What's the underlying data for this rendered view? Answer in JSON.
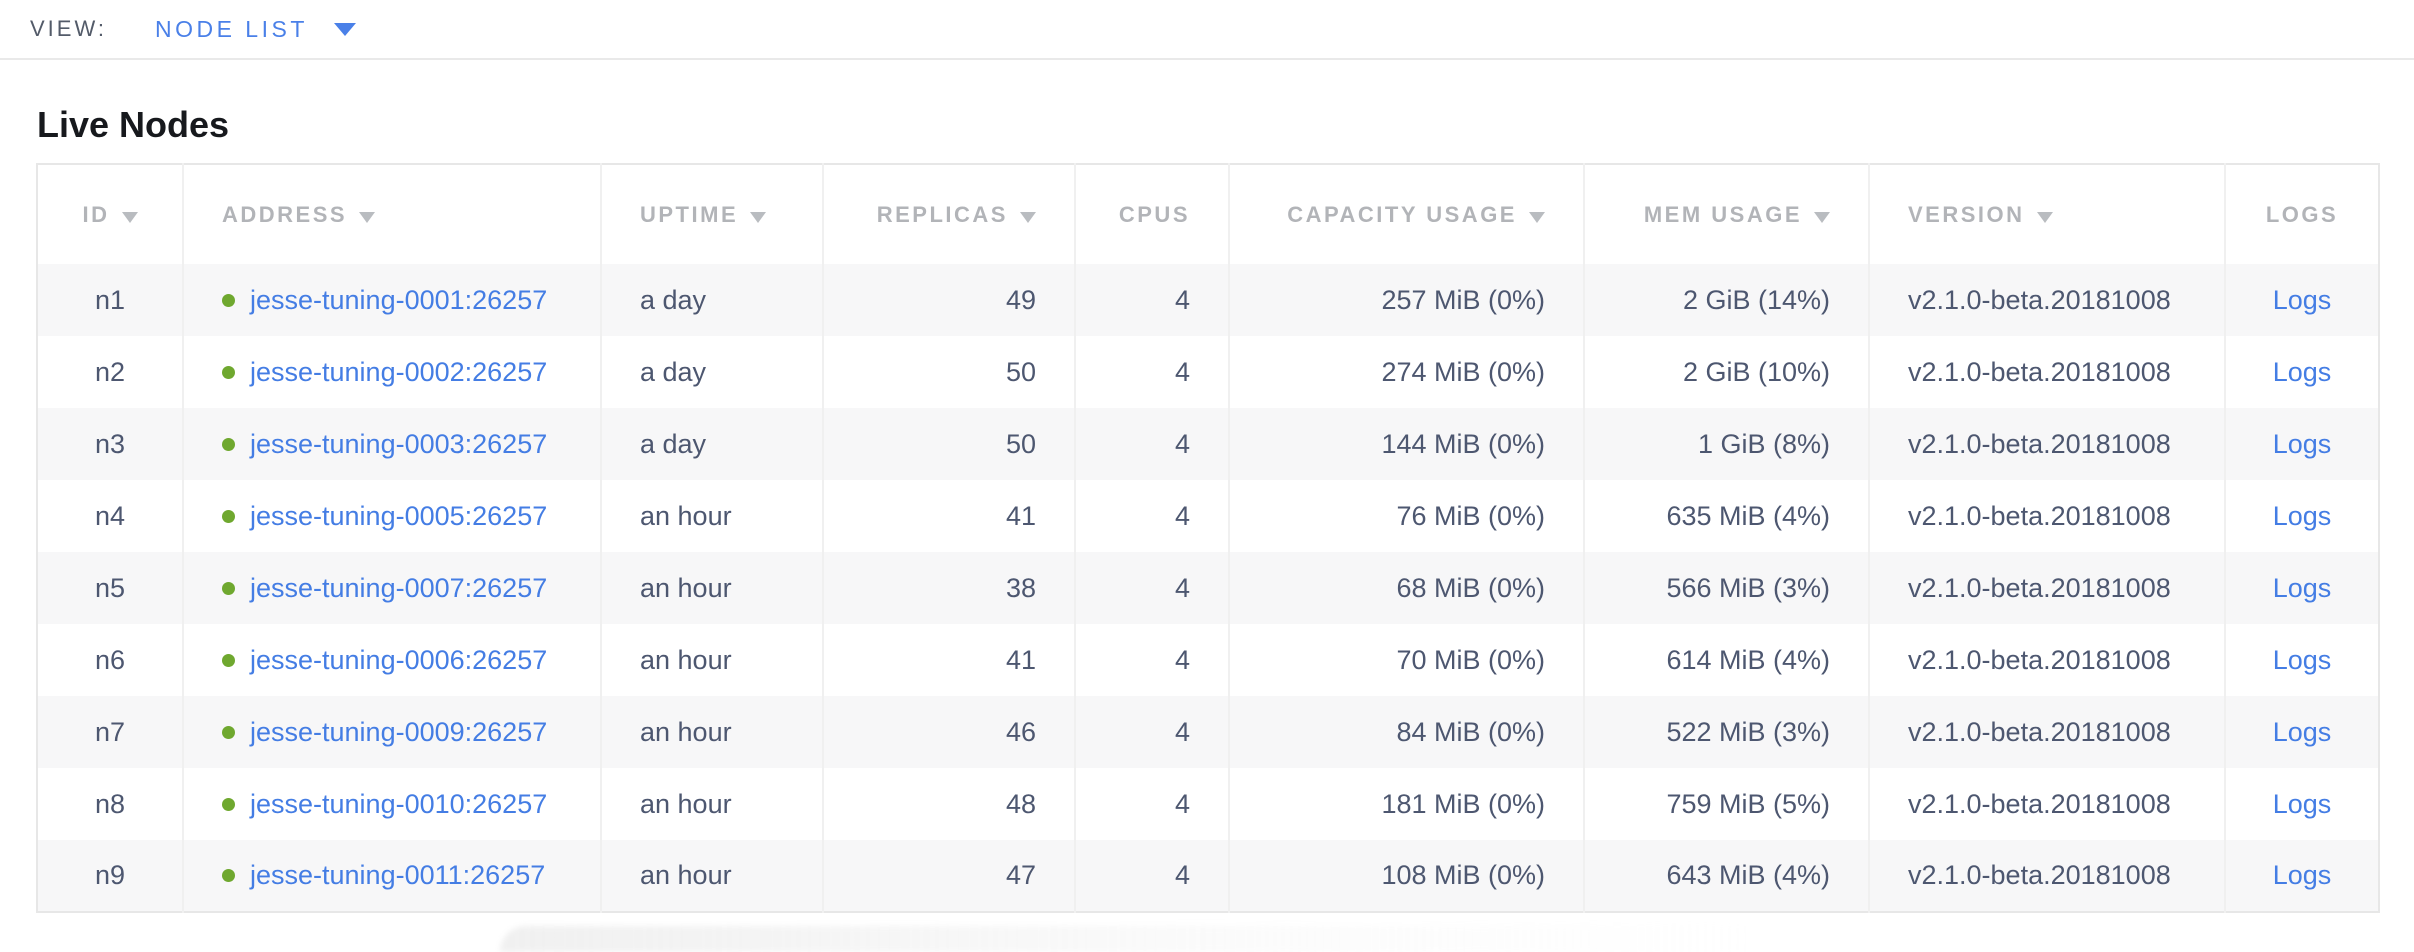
{
  "view_bar": {
    "label": "VIEW:",
    "selected": "NODE LIST"
  },
  "page": {
    "title": "Live Nodes"
  },
  "table": {
    "columns": [
      {
        "key": "id",
        "label": "ID",
        "sortable": true,
        "align": "center"
      },
      {
        "key": "address",
        "label": "ADDRESS",
        "sortable": true,
        "align": "left"
      },
      {
        "key": "uptime",
        "label": "UPTIME",
        "sortable": true,
        "align": "left"
      },
      {
        "key": "replicas",
        "label": "REPLICAS",
        "sortable": true,
        "align": "right"
      },
      {
        "key": "cpus",
        "label": "CPUS",
        "sortable": false,
        "align": "right"
      },
      {
        "key": "capacity_usage",
        "label": "CAPACITY USAGE",
        "sortable": true,
        "align": "right"
      },
      {
        "key": "mem_usage",
        "label": "MEM USAGE",
        "sortable": true,
        "align": "right"
      },
      {
        "key": "version",
        "label": "VERSION",
        "sortable": true,
        "align": "left"
      },
      {
        "key": "logs",
        "label": "LOGS",
        "sortable": false,
        "align": "center"
      }
    ],
    "rows": [
      {
        "id": "n1",
        "status": "live",
        "address": "jesse-tuning-0001:26257",
        "uptime": "a day",
        "replicas": "49",
        "cpus": "4",
        "capacity_usage": "257 MiB (0%)",
        "mem_usage": "2 GiB (14%)",
        "version": "v2.1.0-beta.20181008",
        "logs_label": "Logs"
      },
      {
        "id": "n2",
        "status": "live",
        "address": "jesse-tuning-0002:26257",
        "uptime": "a day",
        "replicas": "50",
        "cpus": "4",
        "capacity_usage": "274 MiB (0%)",
        "mem_usage": "2 GiB (10%)",
        "version": "v2.1.0-beta.20181008",
        "logs_label": "Logs"
      },
      {
        "id": "n3",
        "status": "live",
        "address": "jesse-tuning-0003:26257",
        "uptime": "a day",
        "replicas": "50",
        "cpus": "4",
        "capacity_usage": "144 MiB (0%)",
        "mem_usage": "1 GiB (8%)",
        "version": "v2.1.0-beta.20181008",
        "logs_label": "Logs"
      },
      {
        "id": "n4",
        "status": "live",
        "address": "jesse-tuning-0005:26257",
        "uptime": "an hour",
        "replicas": "41",
        "cpus": "4",
        "capacity_usage": "76 MiB (0%)",
        "mem_usage": "635 MiB (4%)",
        "version": "v2.1.0-beta.20181008",
        "logs_label": "Logs"
      },
      {
        "id": "n5",
        "status": "live",
        "address": "jesse-tuning-0007:26257",
        "uptime": "an hour",
        "replicas": "38",
        "cpus": "4",
        "capacity_usage": "68 MiB (0%)",
        "mem_usage": "566 MiB (3%)",
        "version": "v2.1.0-beta.20181008",
        "logs_label": "Logs"
      },
      {
        "id": "n6",
        "status": "live",
        "address": "jesse-tuning-0006:26257",
        "uptime": "an hour",
        "replicas": "41",
        "cpus": "4",
        "capacity_usage": "70 MiB (0%)",
        "mem_usage": "614 MiB (4%)",
        "version": "v2.1.0-beta.20181008",
        "logs_label": "Logs"
      },
      {
        "id": "n7",
        "status": "live",
        "address": "jesse-tuning-0009:26257",
        "uptime": "an hour",
        "replicas": "46",
        "cpus": "4",
        "capacity_usage": "84 MiB (0%)",
        "mem_usage": "522 MiB (3%)",
        "version": "v2.1.0-beta.20181008",
        "logs_label": "Logs"
      },
      {
        "id": "n8",
        "status": "live",
        "address": "jesse-tuning-0010:26257",
        "uptime": "an hour",
        "replicas": "48",
        "cpus": "4",
        "capacity_usage": "181 MiB (0%)",
        "mem_usage": "759 MiB (5%)",
        "version": "v2.1.0-beta.20181008",
        "logs_label": "Logs"
      },
      {
        "id": "n9",
        "status": "live",
        "address": "jesse-tuning-0011:26257",
        "uptime": "an hour",
        "replicas": "47",
        "cpus": "4",
        "capacity_usage": "108 MiB (0%)",
        "mem_usage": "643 MiB (4%)",
        "version": "v2.1.0-beta.20181008",
        "logs_label": "Logs"
      }
    ]
  },
  "colors": {
    "accent_blue": "#4a80e8",
    "link_blue": "#447de4",
    "live_green": "#6fa82f",
    "header_gray": "#b2b4b8",
    "body_text": "#4d5770"
  }
}
